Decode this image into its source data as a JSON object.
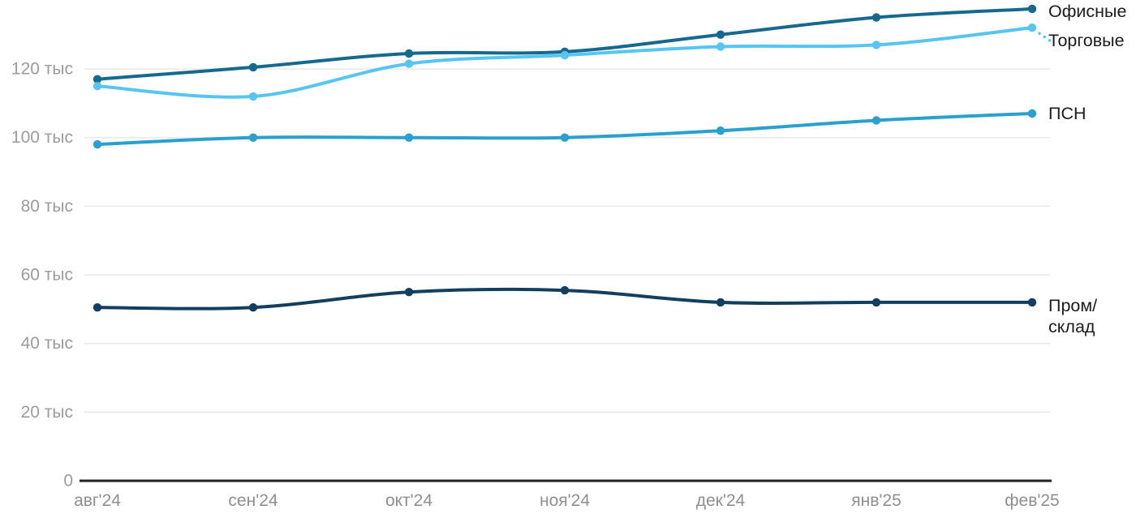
{
  "chart_data": {
    "type": "line",
    "title": "",
    "xlabel": "",
    "ylabel": "",
    "unit": "тыс",
    "x": [
      "авг'24",
      "сен'24",
      "окт'24",
      "ноя'24",
      "дек'24",
      "янв'25",
      "фев'25"
    ],
    "yticks": [
      0,
      20,
      40,
      60,
      80,
      100,
      120
    ],
    "ytick_labels": [
      "0",
      "20 тыс",
      "40 тыс",
      "60 тыс",
      "80 тыс",
      "100 тыс",
      "120 тыс"
    ],
    "ylim": [
      0,
      140
    ],
    "grid": true,
    "legend_position": "right-edge-inline-labels",
    "series": [
      {
        "name": "Офисные",
        "label_lines": [
          "Офисные"
        ],
        "color": "#15698e",
        "values": [
          117,
          120.5,
          124.5,
          125,
          130,
          135,
          137.5
        ]
      },
      {
        "name": "Торговые",
        "label_lines": [
          "Торговые"
        ],
        "color": "#56c5f2",
        "values": [
          115,
          112,
          121.5,
          124,
          126.5,
          127,
          132
        ]
      },
      {
        "name": "ПСН",
        "label_lines": [
          "ПСН"
        ],
        "color": "#29a0ce",
        "values": [
          98,
          100,
          100,
          100,
          102,
          105,
          107
        ]
      },
      {
        "name": "Пром/склад",
        "label_lines": [
          "Пром/",
          "склад"
        ],
        "color": "#123f5f",
        "values": [
          50.5,
          50.5,
          55,
          55.5,
          52,
          52,
          52
        ]
      }
    ],
    "colors": {
      "gridline": "#e9e9e9",
      "axis_line": "#212121",
      "tick_text": "#9b9b9b",
      "label_text": "#1c1c1c",
      "background": "#ffffff"
    }
  }
}
